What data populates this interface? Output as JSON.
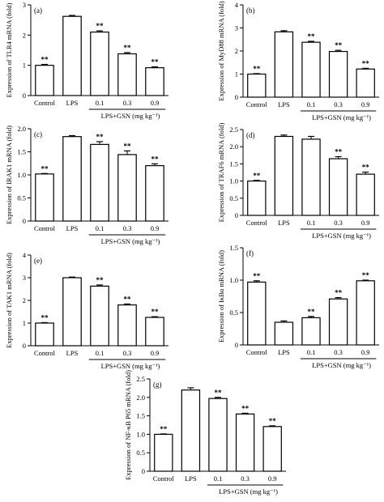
{
  "group_label": "LPS+GSN (mg kg⁻¹)",
  "categories": [
    "Control",
    "LPS",
    "0.1",
    "0.3",
    "0.9"
  ],
  "chart_data": [
    {
      "type": "bar",
      "panel": "(a)",
      "ylabel": "Expression of TLR4 mRNA (fold)",
      "categories": [
        "Control",
        "LPS",
        "0.1",
        "0.3",
        "0.9"
      ],
      "values": [
        1.0,
        2.62,
        2.1,
        1.38,
        0.92
      ],
      "errors": [
        0.03,
        0.03,
        0.04,
        0.04,
        0.03
      ],
      "annotations": [
        "**",
        "",
        "**",
        "**",
        "**"
      ],
      "ylim": [
        0,
        3
      ],
      "yticks": [
        "0",
        "1",
        "2",
        "3"
      ],
      "xgroup": "LPS+GSN (mg kg⁻¹)"
    },
    {
      "type": "bar",
      "panel": "(b)",
      "ylabel": "Expression of MyD88 mRNA (fold)",
      "categories": [
        "Control",
        "LPS",
        "0.1",
        "0.3",
        "0.9"
      ],
      "values": [
        1.0,
        2.83,
        2.38,
        1.98,
        1.22
      ],
      "errors": [
        0.02,
        0.05,
        0.04,
        0.05,
        0.03
      ],
      "annotations": [
        "**",
        "",
        "**",
        "**",
        "**"
      ],
      "ylim": [
        0,
        4
      ],
      "yticks": [
        "0",
        "1",
        "2",
        "3",
        "4"
      ],
      "xgroup": "LPS+GSN (mg kg⁻¹)"
    },
    {
      "type": "bar",
      "panel": "(c)",
      "ylabel": "Expression of IRAK1 mRNA (fold)",
      "categories": [
        "Control",
        "LPS",
        "0.1",
        "0.3",
        "0.9"
      ],
      "values": [
        1.02,
        1.83,
        1.66,
        1.44,
        1.2
      ],
      "errors": [
        0.01,
        0.02,
        0.06,
        0.08,
        0.04
      ],
      "annotations": [
        "**",
        "",
        "**",
        "**",
        "**"
      ],
      "ylim": [
        0,
        2.0
      ],
      "yticks": [
        "0",
        "0.5",
        "1.0",
        "1.5",
        "2.0"
      ],
      "xgroup": "LPS+GSN (mg kg⁻¹)"
    },
    {
      "type": "bar",
      "panel": "(d)",
      "ylabel": "Expression of TRAF6 mRNA (fold)",
      "categories": [
        "Control",
        "LPS",
        "0.1",
        "0.3",
        "0.9"
      ],
      "values": [
        1.0,
        2.3,
        2.22,
        1.65,
        1.2
      ],
      "errors": [
        0.02,
        0.04,
        0.08,
        0.06,
        0.06
      ],
      "annotations": [
        "**",
        "",
        "",
        "**",
        "**"
      ],
      "ylim": [
        0,
        2.5
      ],
      "yticks": [
        "0",
        "0.5",
        "1.0",
        "1.5",
        "2.0",
        "2.5"
      ],
      "xgroup": "LPS+GSN (mg kg⁻¹)"
    },
    {
      "type": "bar",
      "panel": "(e)",
      "ylabel": "Expression of TAK1 mRNA (fold)",
      "categories": [
        "Control",
        "LPS",
        "0.1",
        "0.3",
        "0.9"
      ],
      "values": [
        1.0,
        3.0,
        2.63,
        1.8,
        1.25
      ],
      "errors": [
        0.02,
        0.03,
        0.05,
        0.04,
        0.03
      ],
      "annotations": [
        "**",
        "",
        "**",
        "**",
        "**"
      ],
      "ylim": [
        0,
        4
      ],
      "yticks": [
        "0",
        "1",
        "2",
        "3",
        "4"
      ],
      "xgroup": "LPS+GSN (mg kg⁻¹)"
    },
    {
      "type": "bar",
      "panel": "(f)",
      "ylabel": "Expression of IκBα mRNA (fold)",
      "categories": [
        "Control",
        "LPS",
        "0.1",
        "0.3",
        "0.9"
      ],
      "values": [
        0.97,
        0.35,
        0.42,
        0.71,
        0.99
      ],
      "errors": [
        0.02,
        0.02,
        0.02,
        0.02,
        0.01
      ],
      "annotations": [
        "**",
        "",
        "**",
        "**",
        "**"
      ],
      "ylim": [
        0,
        1.5
      ],
      "yticks": [
        "0",
        "0.5",
        "1.0",
        "1.5"
      ],
      "xgroup": "LPS+GSN (mg kg⁻¹)"
    },
    {
      "type": "bar",
      "panel": "(g)",
      "ylabel": "Expression of NF-κB P65 mRNA (fold)",
      "categories": [
        "Control",
        "LPS",
        "0.1",
        "0.3",
        "0.9"
      ],
      "values": [
        1.0,
        2.2,
        1.97,
        1.55,
        1.21
      ],
      "errors": [
        0.01,
        0.06,
        0.03,
        0.02,
        0.02
      ],
      "annotations": [
        "**",
        "",
        "**",
        "**",
        "**"
      ],
      "ylim": [
        0,
        2.5
      ],
      "yticks": [
        "0",
        "0.5",
        "1.0",
        "1.5",
        "2.0",
        "2.5"
      ],
      "xgroup": "LPS+GSN (mg kg⁻¹)"
    }
  ]
}
